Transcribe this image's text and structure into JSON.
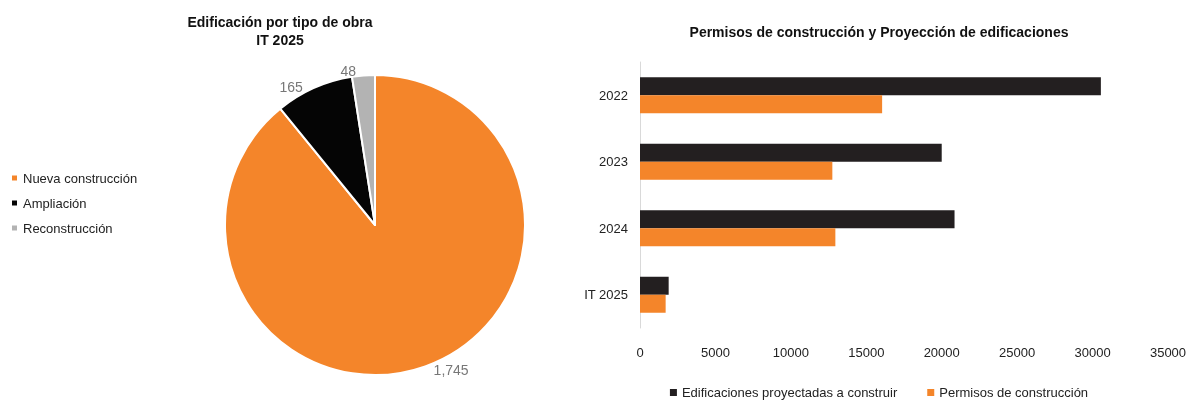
{
  "chart_data": [
    {
      "type": "pie",
      "title": "Edificación por tipo de obra\nIT 2025",
      "categories": [
        "Nueva construcción",
        "Ampliación",
        "Reconstrucción"
      ],
      "values": [
        1745,
        165,
        48
      ],
      "colors": [
        "#f4852a",
        "#050505",
        "#b3b3b3"
      ],
      "value_labels": [
        "1,745",
        "165",
        "48"
      ],
      "legend": "left"
    },
    {
      "type": "bar",
      "orientation": "horizontal",
      "title": "Permisos de construcción y Proyección de edificaciones",
      "categories": [
        "2022",
        "2023",
        "2024",
        "IT 2025"
      ],
      "series": [
        {
          "name": "Edificaciones proyectadas a construir",
          "color": "#231f20",
          "values": [
            30550,
            20000,
            20850,
            1900
          ]
        },
        {
          "name": "Permisos de construcción",
          "color": "#f4852a",
          "values": [
            16050,
            12750,
            12950,
            1700
          ]
        }
      ],
      "xlim": [
        0,
        35000
      ],
      "xticks": [
        0,
        5000,
        10000,
        15000,
        20000,
        25000,
        30000,
        35000
      ],
      "grid": false,
      "legend": "bottom"
    }
  ]
}
